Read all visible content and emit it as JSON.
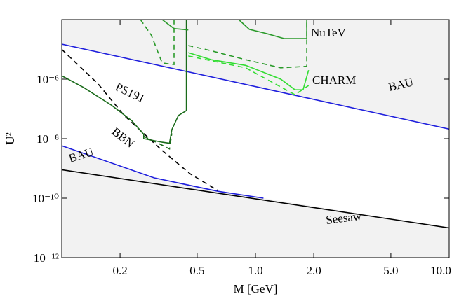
{
  "chart_data": {
    "type": "line",
    "xlabel": "M [GeV]",
    "ylabel": "U²",
    "xlog": true,
    "ylog": true,
    "xlim": [
      0.1,
      10
    ],
    "ylim": [
      1e-12,
      0.0001
    ],
    "xticks": [
      0.2,
      0.5,
      {
        "value": 1,
        "label": "1.0"
      },
      {
        "value": 2,
        "label": "2.0"
      },
      {
        "value": 5,
        "label": "5.0"
      },
      {
        "value": 10,
        "label": "10.0"
      }
    ],
    "yticks": [
      {
        "value": 1e-12,
        "label": "10⁻¹²"
      },
      {
        "value": 1e-10,
        "label": "10⁻¹⁰"
      },
      {
        "value": 1e-08,
        "label": "10⁻⁸"
      },
      {
        "value": 1e-06,
        "label": "10⁻⁶"
      }
    ],
    "series": [
      {
        "name": "BAU",
        "color": "#1f1fdd",
        "dashed": false,
        "x": [
          0.1,
          10
        ],
        "values": [
          1.5e-05,
          2.1e-08
        ]
      },
      {
        "name": "BAU",
        "color": "#1f1fdd",
        "dashed": false,
        "x": [
          0.1,
          0.3,
          0.64,
          1.1
        ],
        "values": [
          5.8e-09,
          4.8e-10,
          1.7e-10,
          1e-10
        ]
      },
      {
        "name": "Seesaw",
        "color": "#000000",
        "dashed": false,
        "x": [
          0.1,
          10
        ],
        "values": [
          9e-10,
          1e-11
        ]
      },
      {
        "name": "BBN",
        "color": "#000000",
        "dashed": true,
        "x": [
          0.1,
          0.154,
          0.21,
          0.33,
          0.46,
          0.64
        ],
        "values": [
          1e-05,
          6.9e-07,
          6e-08,
          4e-09,
          6.6e-10,
          1.8e-10
        ]
      },
      {
        "name": "PS191",
        "color": "#1a6b1a",
        "dashed": false,
        "x": [
          0.1,
          0.13,
          0.18,
          0.23,
          0.265,
          0.265,
          0.33,
          0.36,
          0.37,
          0.4,
          0.44,
          0.44
        ],
        "values": [
          1.3e-06,
          5.2e-07,
          1.35e-07,
          4e-08,
          1.4e-08,
          1e-08,
          7.6e-09,
          7e-09,
          2e-08,
          6e-08,
          8.8e-08,
          0.0001
        ]
      },
      {
        "color": "#1a6b1a",
        "dashed": true,
        "x": [
          0.265,
          0.33,
          0.36,
          0.37
        ],
        "values": [
          1.2e-08,
          6e-09,
          4.5e-09,
          1.5e-08
        ]
      },
      {
        "name": "NuTeV",
        "color": "#2a9a2a",
        "dashed": false,
        "x": [
          0.82,
          0.93,
          1.14,
          1.41,
          1.84,
          1.84
        ],
        "values": [
          0.0001,
          4.7e-05,
          3.4e-05,
          2.3e-05,
          2.3e-05,
          0.0001
        ]
      },
      {
        "color": "#2a9a2a",
        "dashed": false,
        "x": [
          0.33,
          0.38,
          0.45
        ],
        "values": [
          0.0001,
          5e-05,
          4.5e-05
        ]
      },
      {
        "color": "#2a9a2a",
        "dashed": true,
        "x": [
          0.255,
          0.29,
          0.33,
          0.38,
          0.38
        ],
        "values": [
          0.0001,
          3e-05,
          3.5e-06,
          3.1e-06,
          0.0001
        ]
      },
      {
        "color": "#2a9a2a",
        "dashed": true,
        "x": [
          0.45,
          0.59,
          0.89,
          1.35,
          1.84,
          1.84
        ],
        "values": [
          1.35e-05,
          9e-06,
          4.5e-06,
          2.4e-06,
          2.7e-06,
          0.0001
        ]
      },
      {
        "name": "CHARM",
        "color": "#33dd33",
        "dashed": false,
        "x": [
          0.45,
          0.59,
          0.89,
          1.35,
          1.6,
          1.76,
          1.88
        ],
        "values": [
          7.8e-06,
          4.5e-06,
          2.9e-06,
          1e-06,
          4.4e-07,
          4.4e-07,
          2e-06
        ]
      },
      {
        "color": "#33dd33",
        "dashed": true,
        "x": [
          0.45,
          0.89,
          1.6,
          1.88
        ],
        "values": [
          6e-06,
          2.4e-06,
          3e-07,
          6.1e-07
        ]
      }
    ]
  }
}
